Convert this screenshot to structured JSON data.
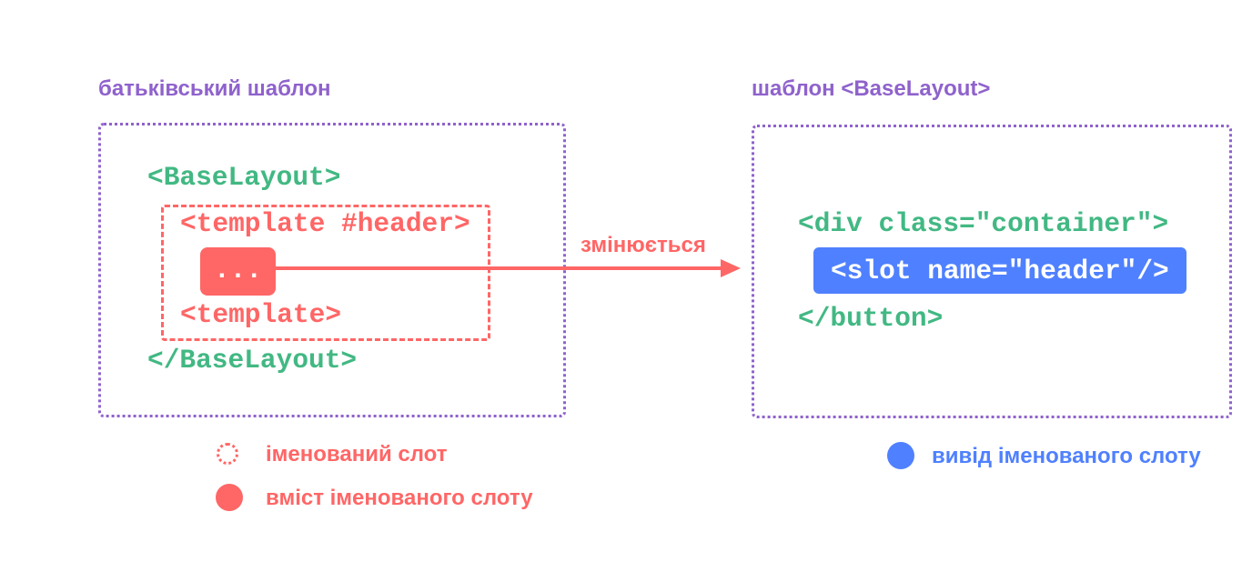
{
  "colors": {
    "purple": "#8f62cc",
    "green": "#42b883",
    "red": "#ff6666",
    "blue": "#4f80ff"
  },
  "parent": {
    "title": "батьківський шаблон",
    "open_tag": "<BaseLayout>",
    "template_open": "<template #header>",
    "content": "...",
    "template_close": "<template>",
    "close_tag": "</BaseLayout>"
  },
  "arrow_label": "змінюється",
  "child": {
    "title": "шаблон <BaseLayout>",
    "div_open": "<div class=\"container\">",
    "slot": "<slot name=\"header\"/>",
    "close": "</button>"
  },
  "legend": {
    "named_slot": "іменований слот",
    "named_slot_content": "вміст іменованого слоту",
    "named_slot_outlet": "вивід іменованого слоту"
  }
}
